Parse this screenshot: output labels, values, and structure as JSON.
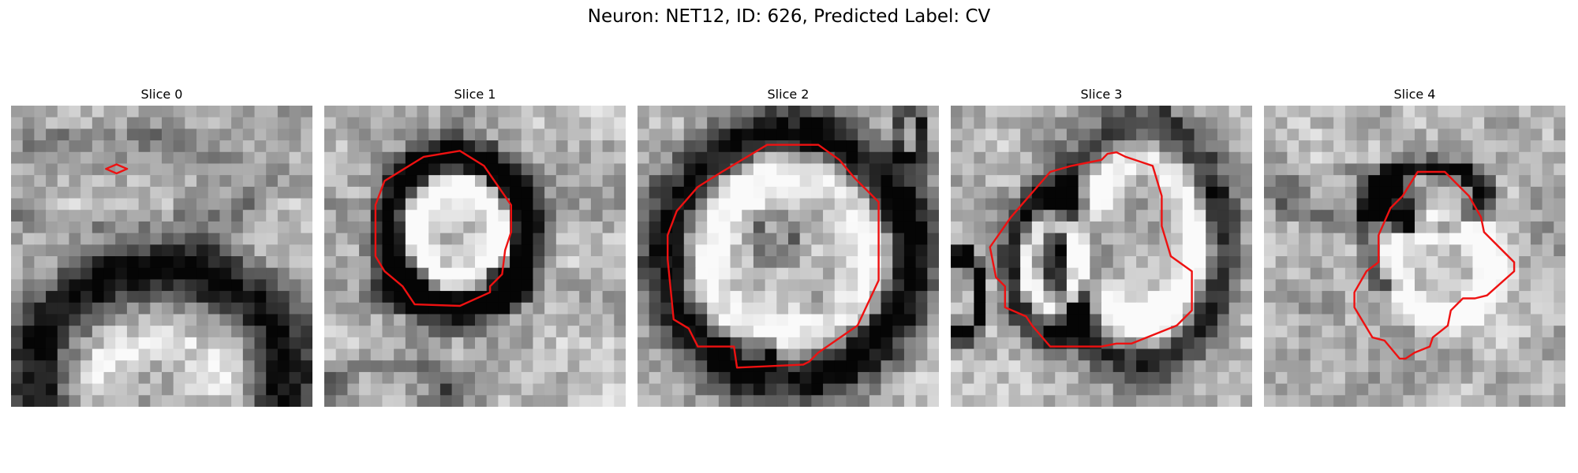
{
  "figure": {
    "title": "Neuron: NET12, ID: 626, Predicted Label: CV",
    "grid_size": 26,
    "contour_color": "#ee1111",
    "panels": [
      {
        "title": "Slice 0",
        "seed": 11,
        "blobs": [
          [
            0.5,
            0.88,
            0.42,
            0.34,
            -70
          ],
          [
            0.5,
            1.02,
            0.26,
            0.24,
            25
          ],
          [
            0.35,
            0.25,
            0.5,
            0.15,
            -15
          ]
        ],
        "contour": [
          [
            0.35,
            0.195
          ],
          [
            0.385,
            0.21
          ],
          [
            0.35,
            0.225
          ],
          [
            0.315,
            0.21
          ]
        ]
      },
      {
        "title": "Slice 1",
        "seed": 23,
        "blobs": [
          [
            0.44,
            0.42,
            0.23,
            0.25,
            -85
          ],
          [
            0.44,
            0.42,
            0.14,
            0.15,
            75
          ],
          [
            0.42,
            0.61,
            0.22,
            0.07,
            -40
          ],
          [
            0.2,
            0.95,
            0.2,
            0.09,
            -30
          ]
        ],
        "contour": [
          [
            0.33,
            0.17
          ],
          [
            0.45,
            0.15
          ],
          [
            0.53,
            0.2
          ],
          [
            0.62,
            0.33
          ],
          [
            0.62,
            0.42
          ],
          [
            0.6,
            0.48
          ],
          [
            0.59,
            0.56
          ],
          [
            0.55,
            0.6
          ],
          [
            0.55,
            0.62
          ],
          [
            0.45,
            0.665
          ],
          [
            0.3,
            0.66
          ],
          [
            0.26,
            0.6
          ],
          [
            0.2,
            0.55
          ],
          [
            0.17,
            0.5
          ],
          [
            0.17,
            0.33
          ],
          [
            0.2,
            0.25
          ]
        ]
      },
      {
        "title": "Slice 2",
        "seed": 37,
        "blobs": [
          [
            0.5,
            0.5,
            0.38,
            0.38,
            -90
          ],
          [
            0.5,
            0.5,
            0.3,
            0.3,
            70
          ],
          [
            0.45,
            0.45,
            0.06,
            0.07,
            -30
          ],
          [
            0.45,
            0.4,
            0.09,
            0.04,
            -10
          ],
          [
            0.35,
            0.82,
            0.1,
            0.05,
            -60
          ],
          [
            0.9,
            0.1,
            0.05,
            0.08,
            -50
          ]
        ],
        "contour": [
          [
            0.43,
            0.13
          ],
          [
            0.6,
            0.13
          ],
          [
            0.67,
            0.18
          ],
          [
            0.72,
            0.24
          ],
          [
            0.8,
            0.32
          ],
          [
            0.8,
            0.58
          ],
          [
            0.73,
            0.73
          ],
          [
            0.6,
            0.82
          ],
          [
            0.57,
            0.85
          ],
          [
            0.55,
            0.86
          ],
          [
            0.33,
            0.87
          ],
          [
            0.32,
            0.8
          ],
          [
            0.2,
            0.8
          ],
          [
            0.17,
            0.74
          ],
          [
            0.12,
            0.71
          ],
          [
            0.1,
            0.51
          ],
          [
            0.1,
            0.43
          ],
          [
            0.13,
            0.35
          ],
          [
            0.2,
            0.27
          ],
          [
            0.28,
            0.22
          ]
        ]
      },
      {
        "title": "Slice 3",
        "seed": 59,
        "blobs": [
          [
            0.34,
            0.53,
            0.14,
            0.23,
            -60
          ],
          [
            0.63,
            0.47,
            0.26,
            0.36,
            -70
          ],
          [
            0.63,
            0.45,
            0.19,
            0.29,
            75
          ],
          [
            0.34,
            0.53,
            0.08,
            0.14,
            70
          ],
          [
            0.04,
            0.63,
            0.06,
            0.13,
            -90
          ],
          [
            0.8,
            0.03,
            0.08,
            0.05,
            -20
          ]
        ],
        "contour": [
          [
            0.33,
            0.22
          ],
          [
            0.4,
            0.2
          ],
          [
            0.5,
            0.18
          ],
          [
            0.52,
            0.16
          ],
          [
            0.55,
            0.155
          ],
          [
            0.58,
            0.17
          ],
          [
            0.67,
            0.2
          ],
          [
            0.7,
            0.3
          ],
          [
            0.7,
            0.4
          ],
          [
            0.73,
            0.5
          ],
          [
            0.8,
            0.55
          ],
          [
            0.8,
            0.68
          ],
          [
            0.75,
            0.73
          ],
          [
            0.6,
            0.79
          ],
          [
            0.55,
            0.79
          ],
          [
            0.5,
            0.8
          ],
          [
            0.33,
            0.8
          ],
          [
            0.27,
            0.73
          ],
          [
            0.25,
            0.7
          ],
          [
            0.18,
            0.67
          ],
          [
            0.18,
            0.6
          ],
          [
            0.15,
            0.57
          ],
          [
            0.13,
            0.47
          ],
          [
            0.2,
            0.37
          ]
        ]
      },
      {
        "title": "Slice 4",
        "seed": 71,
        "blobs": [
          [
            0.55,
            0.3,
            0.18,
            0.1,
            -70
          ],
          [
            0.41,
            0.42,
            0.07,
            0.17,
            -50
          ],
          [
            0.6,
            0.55,
            0.15,
            0.16,
            70
          ],
          [
            0.25,
            0.3,
            0.18,
            0.08,
            -25
          ]
        ],
        "contour": [
          [
            0.51,
            0.22
          ],
          [
            0.6,
            0.22
          ],
          [
            0.68,
            0.3
          ],
          [
            0.72,
            0.37
          ],
          [
            0.73,
            0.42
          ],
          [
            0.83,
            0.52
          ],
          [
            0.83,
            0.55
          ],
          [
            0.74,
            0.63
          ],
          [
            0.7,
            0.64
          ],
          [
            0.66,
            0.64
          ],
          [
            0.62,
            0.68
          ],
          [
            0.61,
            0.73
          ],
          [
            0.56,
            0.77
          ],
          [
            0.55,
            0.8
          ],
          [
            0.5,
            0.82
          ],
          [
            0.47,
            0.84
          ],
          [
            0.45,
            0.84
          ],
          [
            0.4,
            0.78
          ],
          [
            0.36,
            0.77
          ],
          [
            0.3,
            0.67
          ],
          [
            0.3,
            0.62
          ],
          [
            0.34,
            0.55
          ],
          [
            0.38,
            0.52
          ],
          [
            0.38,
            0.43
          ],
          [
            0.42,
            0.34
          ],
          [
            0.46,
            0.3
          ]
        ]
      }
    ]
  }
}
